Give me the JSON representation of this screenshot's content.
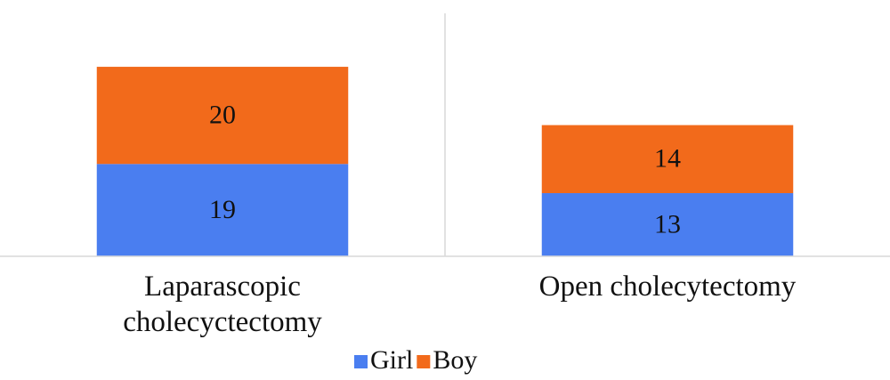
{
  "chart_data": {
    "type": "stacked_bar",
    "categories": [
      "Laparascopic cholecyctectomy",
      "Open cholecytectomy"
    ],
    "series": [
      {
        "name": "Girl",
        "color": "#4a7ef0",
        "values": [
          19,
          13
        ]
      },
      {
        "name": "Boy",
        "color": "#f26a1b",
        "values": [
          20,
          14
        ]
      }
    ],
    "ylim": [
      0,
      50
    ]
  }
}
